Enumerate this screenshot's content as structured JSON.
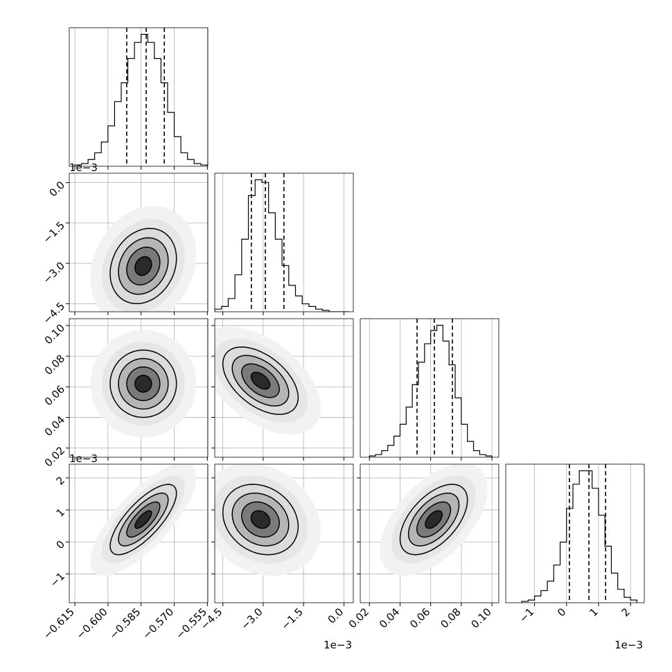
{
  "chart_data": {
    "type": "corner",
    "parameters": [
      {
        "lim": [
          -0.6175,
          -0.5548
        ],
        "ticks": [
          {
            "value": -0.615,
            "label": "−0.615"
          },
          {
            "value": -0.6,
            "label": "−0.600"
          },
          {
            "value": -0.585,
            "label": "−0.585"
          },
          {
            "value": -0.57,
            "label": "−0.570"
          },
          {
            "value": -0.555,
            "label": "−0.555"
          }
        ],
        "quantiles": [
          -0.5915,
          -0.5827,
          -0.5745
        ],
        "hist": {
          "bins": [
            -0.615,
            -0.612,
            -0.609,
            -0.606,
            -0.603,
            -0.6,
            -0.597,
            -0.594,
            -0.591,
            -0.588,
            -0.585,
            -0.582,
            -0.579,
            -0.576,
            -0.573,
            -0.57,
            -0.567,
            -0.564,
            -0.561,
            -0.558,
            -0.555
          ],
          "counts": [
            1,
            2,
            5,
            10,
            18,
            30,
            48,
            62,
            80,
            92,
            98,
            92,
            80,
            62,
            40,
            22,
            10,
            5,
            2,
            1
          ]
        }
      },
      {
        "lim": [
          -4.8,
          0.35
        ],
        "ticks": [
          {
            "value": -4.5,
            "label": "−4.5"
          },
          {
            "value": -3.0,
            "label": "−3.0"
          },
          {
            "value": -1.5,
            "label": "−1.5"
          },
          {
            "value": 0,
            "label": "0.0"
          }
        ],
        "offset_label": "1e−3",
        "quantiles": [
          -3.44,
          -2.92,
          -2.23
        ],
        "hist": {
          "bins": [
            -4.8,
            -4.55,
            -4.3,
            -4.05,
            -3.8,
            -3.55,
            -3.3,
            -3.05,
            -2.8,
            -2.55,
            -2.3,
            -2.05,
            -1.8,
            -1.55,
            -1.3,
            -1.05,
            -0.8,
            -0.55,
            -0.3,
            -0.05,
            0.2
          ],
          "counts": [
            2,
            4,
            10,
            28,
            55,
            88,
            100,
            98,
            75,
            55,
            35,
            20,
            12,
            6,
            4,
            2,
            1,
            0,
            0,
            0
          ]
        }
      },
      {
        "lim": [
          0.014,
          0.1045
        ],
        "ticks": [
          0.02,
          0.04,
          0.06,
          0.08,
          {
            "value": 0.1,
            "label": "0.10"
          }
        ],
        "quantiles": [
          0.0511,
          0.0624,
          0.0742
        ],
        "hist": {
          "bins": [
            0.02,
            0.024,
            0.028,
            0.032,
            0.036,
            0.04,
            0.044,
            0.048,
            0.052,
            0.056,
            0.06,
            0.064,
            0.068,
            0.072,
            0.076,
            0.08,
            0.084,
            0.088,
            0.092,
            0.096,
            0.1
          ],
          "counts": [
            1,
            2,
            5,
            9,
            16,
            25,
            38,
            55,
            72,
            86,
            96,
            100,
            88,
            70,
            45,
            25,
            12,
            5,
            2,
            1
          ]
        }
      },
      {
        "lim": [
          -1.9,
          2.43
        ],
        "ticks": [
          {
            "value": -1,
            "label": "−1"
          },
          0,
          1,
          2
        ],
        "offset_label": "1e−3",
        "quantiles": [
          0.09,
          0.7,
          1.22
        ],
        "hist": {
          "bins": [
            -1.4,
            -1.2,
            -1.0,
            -0.8,
            -0.6,
            -0.4,
            -0.2,
            0,
            0.2,
            0.4,
            0.6,
            0.8,
            1.0,
            1.2,
            1.4,
            1.6,
            1.8,
            2.0,
            2.2
          ],
          "counts": [
            1,
            2,
            5,
            9,
            16,
            28,
            45,
            70,
            88,
            98,
            98,
            85,
            65,
            42,
            22,
            10,
            4,
            2
          ]
        }
      }
    ],
    "levels": [
      0.5,
      1,
      1.5,
      2
    ],
    "panels": [
      {
        "x": 0,
        "y": 1,
        "center": [
          -0.584,
          -3.1
        ],
        "spread": [
          0.0075,
          0.7
        ],
        "rho": 0.2
      },
      {
        "x": 0,
        "y": 2,
        "center": [
          -0.584,
          0.062
        ],
        "spread": [
          0.0075,
          0.011
        ],
        "rho": 0
      },
      {
        "x": 1,
        "y": 2,
        "center": [
          -3.1,
          0.064
        ],
        "spread": [
          0.7,
          0.011
        ],
        "rho": -0.5
      },
      {
        "x": 0,
        "y": 3,
        "center": [
          -0.584,
          0.7
        ],
        "spread": [
          0.0075,
          0.55
        ],
        "rho": 0.75
      },
      {
        "x": 1,
        "y": 3,
        "center": [
          -3.1,
          0.7
        ],
        "spread": [
          0.7,
          0.55
        ],
        "rho": -0.2
      },
      {
        "x": 2,
        "y": 3,
        "center": [
          0.062,
          0.7
        ],
        "spread": [
          0.011,
          0.55
        ],
        "rho": 0.55
      }
    ]
  }
}
